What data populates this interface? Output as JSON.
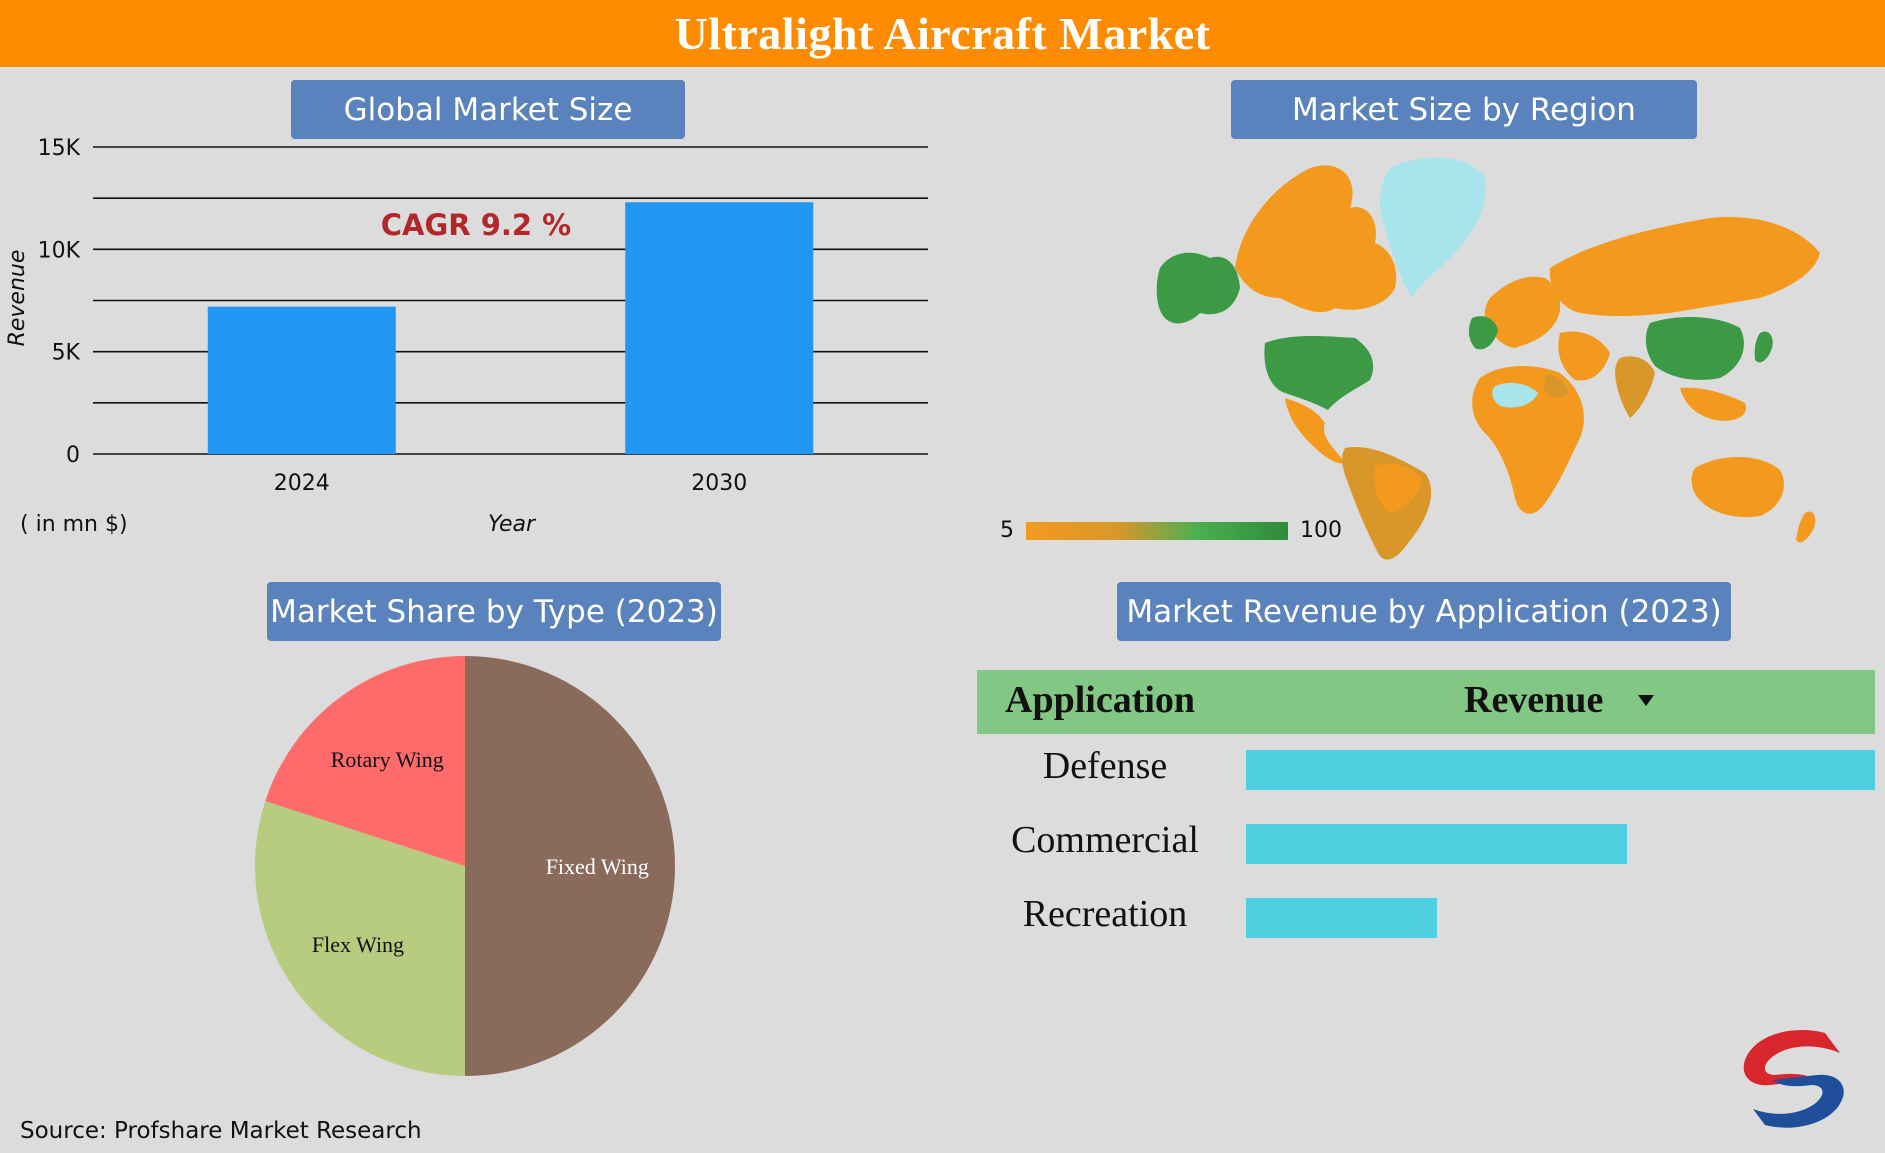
{
  "header": {
    "title": "Ultralight Aircraft Market"
  },
  "panels": {
    "market_size_title": "Global Market Size",
    "region_title": "Market Size by Region",
    "type_title": "Market Share by Type (2023)",
    "application_title": "Market Revenue by Application (2023)"
  },
  "market_size": {
    "cagr_label": "CAGR 9.2 %",
    "unit_label": "( in mn $)"
  },
  "region_map": {
    "legend_min": "5",
    "legend_max": "100",
    "colors": {
      "low": "#f39a1e",
      "mid": "#d9972a",
      "high": "#3c9a45",
      "no_data": "#a8e4ec"
    }
  },
  "application_table": {
    "col_application": "Application",
    "col_revenue": "Revenue",
    "sort_icon": "triangle-down-icon",
    "rows": [
      {
        "label": "Defense",
        "value": 1.0
      },
      {
        "label": "Commercial",
        "value": 0.605
      },
      {
        "label": "Recreation",
        "value": 0.303
      }
    ],
    "bar_color": "#4ed0e0"
  },
  "source": "Source: Profshare Market Research",
  "logo": "profshare-logo",
  "chart_data": [
    {
      "type": "bar",
      "categories": [
        "2024",
        "2030"
      ],
      "values": [
        7200,
        12300
      ],
      "xlabel": "Year",
      "ylabel": "Revenue",
      "ylim": [
        0,
        15000
      ],
      "ytick_labels": [
        "0",
        "5K",
        "10K",
        "15K"
      ],
      "ytick_values": [
        0,
        5000,
        10000,
        15000
      ],
      "grid": true,
      "bar_color": "#2196f3"
    },
    {
      "type": "pie",
      "labels": [
        "Fixed Wing",
        "Flex Wing",
        "Rotary Wing"
      ],
      "values": [
        50,
        30,
        20
      ],
      "colors": [
        "#8a6a5a",
        "#b8cc80",
        "#ff6b6b"
      ],
      "label_colors": [
        "#ffffff",
        "#111111",
        "#111111"
      ]
    }
  ]
}
